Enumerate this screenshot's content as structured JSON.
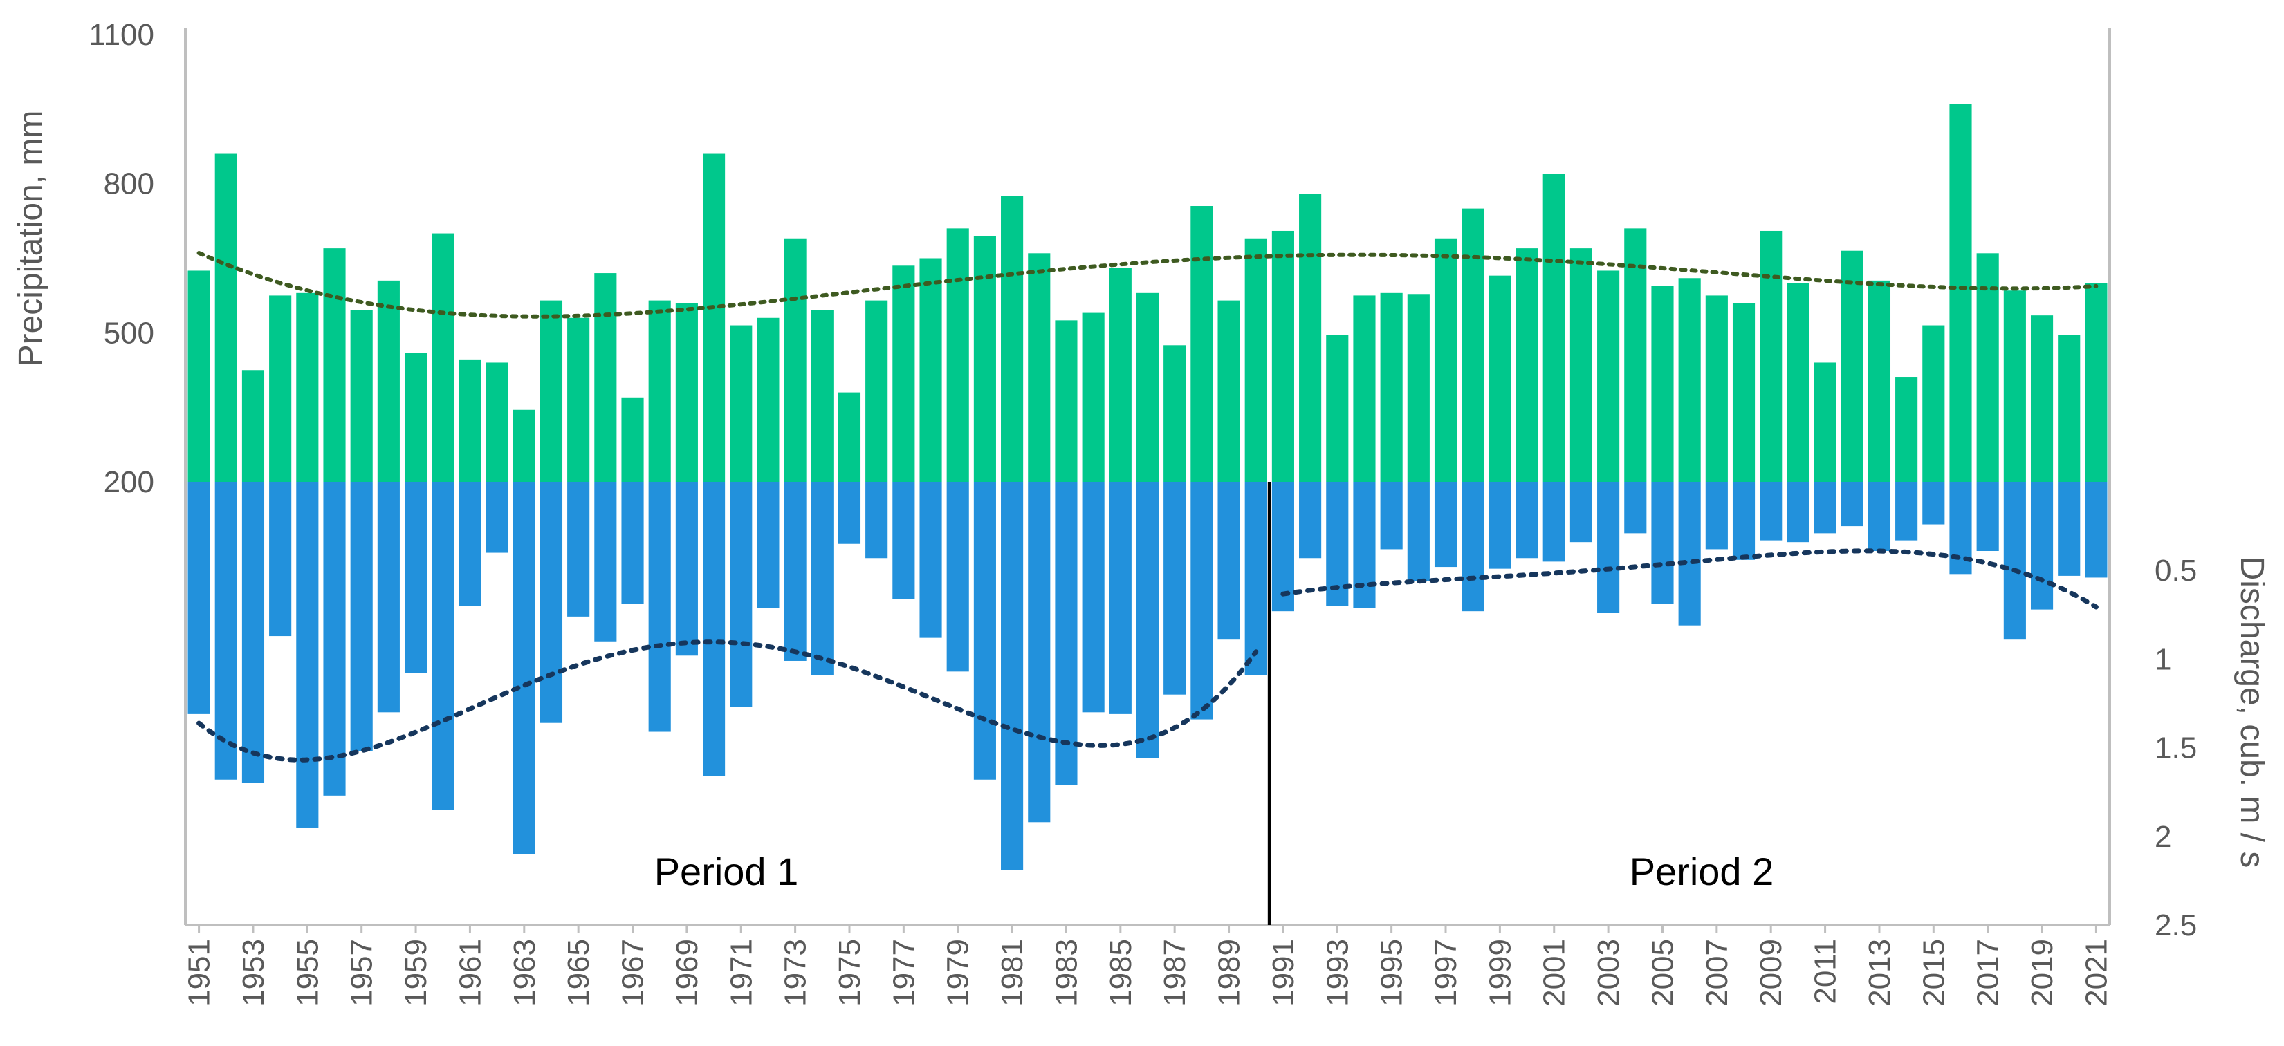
{
  "chart_data": {
    "type": "bar",
    "years": [
      1951,
      1952,
      1953,
      1954,
      1955,
      1956,
      1957,
      1958,
      1959,
      1960,
      1961,
      1962,
      1963,
      1964,
      1965,
      1966,
      1967,
      1968,
      1969,
      1970,
      1971,
      1972,
      1973,
      1974,
      1975,
      1976,
      1977,
      1978,
      1979,
      1980,
      1981,
      1982,
      1983,
      1984,
      1985,
      1986,
      1987,
      1988,
      1989,
      1990,
      1991,
      1992,
      1993,
      1994,
      1995,
      1996,
      1997,
      1998,
      1999,
      2000,
      2001,
      2002,
      2003,
      2004,
      2005,
      2006,
      2007,
      2008,
      2009,
      2010,
      2011,
      2012,
      2013,
      2014,
      2015,
      2016,
      2017,
      2018,
      2019,
      2020,
      2021
    ],
    "x_tick_labels": [
      "1951",
      "1953",
      "1955",
      "1957",
      "1959",
      "1961",
      "1963",
      "1965",
      "1967",
      "1969",
      "1971",
      "1973",
      "1975",
      "1977",
      "1979",
      "1981",
      "1983",
      "1985",
      "1987",
      "1989",
      "1991",
      "1993",
      "1995",
      "1997",
      "1999",
      "2001",
      "2003",
      "2005",
      "2007",
      "2009",
      "2011",
      "2013",
      "2015",
      "2017",
      "2019",
      "2021"
    ],
    "series": [
      {
        "name": "Precipitation, mm",
        "axis": "left",
        "color": "#00C88C",
        "values": [
          625,
          860,
          425,
          575,
          580,
          670,
          545,
          605,
          460,
          700,
          445,
          440,
          345,
          565,
          530,
          620,
          370,
          565,
          560,
          860,
          515,
          530,
          690,
          545,
          380,
          565,
          635,
          650,
          710,
          695,
          775,
          660,
          525,
          540,
          630,
          580,
          475,
          755,
          565,
          690,
          705,
          780,
          495,
          575,
          580,
          578,
          690,
          750,
          615,
          670,
          820,
          670,
          625,
          710,
          595,
          610,
          575,
          560,
          705,
          600,
          440,
          665,
          605,
          410,
          515,
          960,
          660,
          585,
          535,
          495,
          600
        ]
      },
      {
        "name": "Discharge, cub. m / s",
        "axis": "right",
        "color": "#2291DC",
        "values": [
          1.31,
          1.68,
          1.7,
          0.87,
          1.95,
          1.77,
          1.52,
          1.3,
          1.08,
          1.85,
          0.7,
          0.4,
          2.1,
          1.36,
          0.76,
          0.9,
          0.69,
          1.41,
          0.98,
          1.66,
          1.27,
          0.71,
          1.01,
          1.09,
          0.35,
          0.43,
          0.66,
          0.88,
          1.07,
          1.68,
          2.19,
          1.92,
          1.71,
          1.3,
          1.31,
          1.56,
          1.2,
          1.34,
          0.89,
          1.09,
          0.73,
          0.43,
          0.7,
          0.71,
          0.38,
          0.56,
          0.48,
          0.73,
          0.49,
          0.43,
          0.45,
          0.34,
          0.74,
          0.29,
          0.69,
          0.81,
          0.38,
          0.44,
          0.33,
          0.34,
          0.29,
          0.25,
          0.39,
          0.33,
          0.24,
          0.52,
          0.39,
          0.89,
          0.72,
          0.53,
          0.54
        ]
      }
    ],
    "trendlines": [
      {
        "series": "Precipitation, mm",
        "color": "#3E5A20"
      },
      {
        "series": "Discharge, cub. m / s",
        "color": "#16365C"
      }
    ],
    "left_axis": {
      "title": "Precipitation, mm",
      "min": 200,
      "max": 1100,
      "ticks": [
        200,
        500,
        800,
        1100
      ]
    },
    "right_axis": {
      "title": "Discharge, cub. m / s",
      "min": 0,
      "max": 2.5,
      "ticks": [
        "0.5",
        "1",
        "1.5",
        "2",
        "2.5"
      ],
      "reversed": true
    },
    "split_after_year": 1990,
    "period_labels": [
      "Period 1",
      "Period 2"
    ]
  }
}
